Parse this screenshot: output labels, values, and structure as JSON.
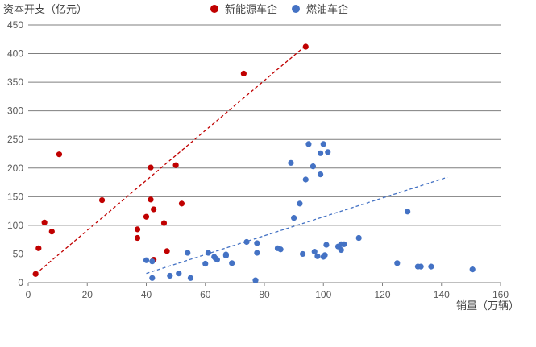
{
  "chart_data": {
    "type": "scatter",
    "ylabel": "资本开支（亿元）",
    "xlabel": "销量（万辆）",
    "xlim": [
      0,
      160
    ],
    "ylim": [
      0,
      450
    ],
    "xticks": [
      0,
      20,
      40,
      60,
      80,
      100,
      120,
      140,
      160
    ],
    "yticks": [
      0,
      50,
      100,
      150,
      200,
      250,
      300,
      350,
      400,
      450
    ],
    "grid": "horizontal",
    "legend_position": "top-center",
    "series": [
      {
        "name": "新能源车企",
        "color": "#c00000",
        "points": [
          [
            2.5,
            15
          ],
          [
            3.5,
            60
          ],
          [
            5.5,
            105
          ],
          [
            8,
            89
          ],
          [
            10.5,
            224
          ],
          [
            25,
            144
          ],
          [
            37,
            93
          ],
          [
            37,
            78
          ],
          [
            40,
            115
          ],
          [
            41.5,
            201
          ],
          [
            41.5,
            145
          ],
          [
            42.5,
            128
          ],
          [
            42.5,
            40
          ],
          [
            46,
            104
          ],
          [
            47,
            55
          ],
          [
            50,
            205
          ],
          [
            52,
            138
          ],
          [
            73,
            365
          ],
          [
            94,
            412
          ]
        ],
        "trendline": [
          [
            2.5,
            15
          ],
          [
            94,
            414
          ]
        ]
      },
      {
        "name": "燃油车企",
        "color": "#4472c4",
        "points": [
          [
            40,
            39
          ],
          [
            42,
            37
          ],
          [
            42,
            8
          ],
          [
            48,
            12
          ],
          [
            51,
            16
          ],
          [
            54,
            52
          ],
          [
            55,
            8
          ],
          [
            60,
            33
          ],
          [
            61,
            52
          ],
          [
            63,
            45
          ],
          [
            63.5,
            42
          ],
          [
            64,
            40
          ],
          [
            67,
            47
          ],
          [
            67,
            49
          ],
          [
            69,
            34
          ],
          [
            74,
            71
          ],
          [
            77,
            4
          ],
          [
            77.5,
            69
          ],
          [
            77.5,
            52
          ],
          [
            84.5,
            60
          ],
          [
            85.5,
            58
          ],
          [
            89,
            209
          ],
          [
            90,
            113
          ],
          [
            92,
            138
          ],
          [
            93,
            50
          ],
          [
            94,
            180
          ],
          [
            95,
            242
          ],
          [
            96.5,
            203
          ],
          [
            97,
            54
          ],
          [
            98,
            46
          ],
          [
            99,
            226
          ],
          [
            99,
            189
          ],
          [
            100,
            242
          ],
          [
            100,
            45
          ],
          [
            100.5,
            48
          ],
          [
            101,
            66
          ],
          [
            101.5,
            228
          ],
          [
            105,
            63
          ],
          [
            106,
            67
          ],
          [
            106,
            57
          ],
          [
            107,
            67
          ],
          [
            112,
            78
          ],
          [
            125,
            34
          ],
          [
            128.5,
            124
          ],
          [
            132,
            28
          ],
          [
            133,
            28
          ],
          [
            136.5,
            28
          ],
          [
            150.5,
            23
          ]
        ],
        "trendline": [
          [
            40,
            16
          ],
          [
            142,
            184
          ]
        ]
      }
    ]
  }
}
